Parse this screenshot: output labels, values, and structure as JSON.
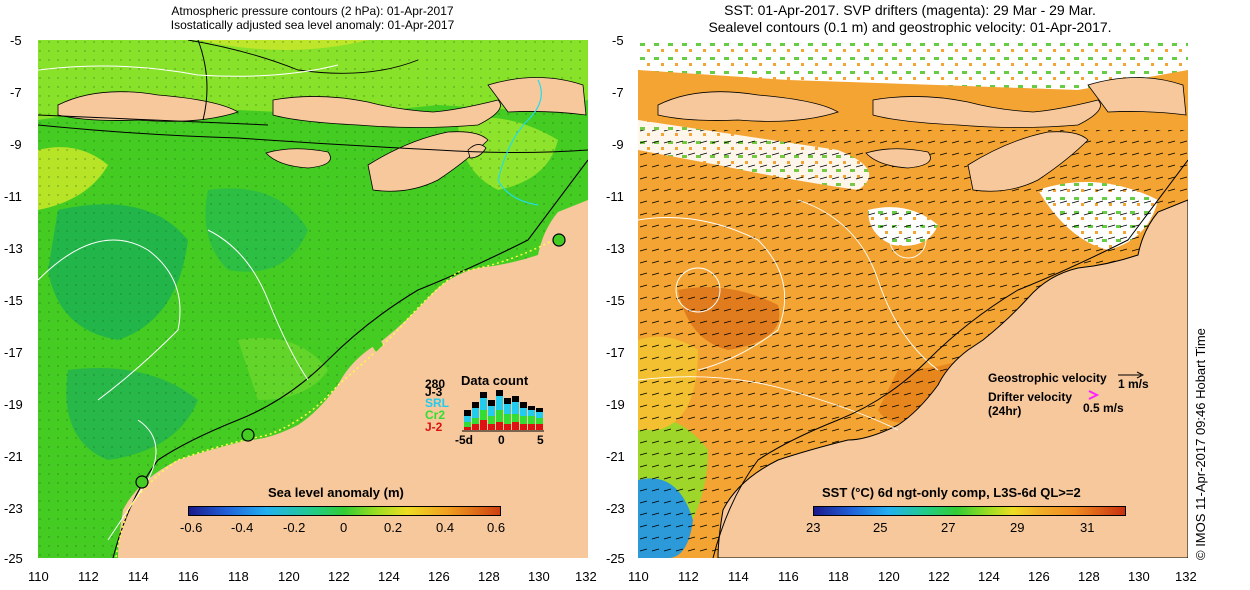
{
  "left_panel": {
    "title_line1": "Atmospheric pressure contours (2 hPa): 01-Apr-2017",
    "title_line2": "Isostatically adjusted sea level anomaly: 01-Apr-2017",
    "colorbar": {
      "label": "Sea level anomaly (m)",
      "ticks": [
        "-0.6",
        "-0.4",
        "-0.2",
        "0",
        "0.2",
        "0.4",
        "0.6"
      ]
    },
    "data_count": {
      "title": "Data count",
      "top_value": "280",
      "series_labels": [
        {
          "label": "J-3",
          "color": "#000000"
        },
        {
          "label": "SRL",
          "color": "#22ccee"
        },
        {
          "label": "Cr2",
          "color": "#33dd33"
        },
        {
          "label": "J-2",
          "color": "#dd1111"
        }
      ],
      "axis_ticks": [
        "-5d",
        "0",
        "5"
      ]
    }
  },
  "right_panel": {
    "title_line1": "SST: 01-Apr-2017. SVP drifters (magenta): 29 Mar - 29 Mar.",
    "title_line2": "Sealevel contours (0.1 m) and geostrophic velocity: 01-Apr-2017.",
    "legend": {
      "geostrophic": "Geostrophic velocity",
      "geostrophic_scale": "1 m/s",
      "drifter_line1": "Drifter velocity",
      "drifter_line2": "(24hr)",
      "drifter_scale": "0.5 m/s"
    },
    "colorbar": {
      "label": "SST (°C) 6d ngt-only comp, L3S-6d QL>=2",
      "ticks": [
        "23",
        "25",
        "27",
        "29",
        "31"
      ]
    }
  },
  "axes": {
    "x_ticks": [
      "110",
      "112",
      "114",
      "116",
      "118",
      "120",
      "122",
      "124",
      "126",
      "128",
      "130",
      "132"
    ],
    "y_ticks": [
      "-5",
      "-7",
      "-9",
      "-11",
      "-13",
      "-15",
      "-17",
      "-19",
      "-21",
      "-23",
      "-25"
    ]
  },
  "footer_vertical": "© IMOS 11-Apr-2017 09:46 Hobart Time",
  "colors": {
    "land": "#f6c89c",
    "ocean_green": "#44cc22",
    "sst_orange": "#f4a432"
  }
}
